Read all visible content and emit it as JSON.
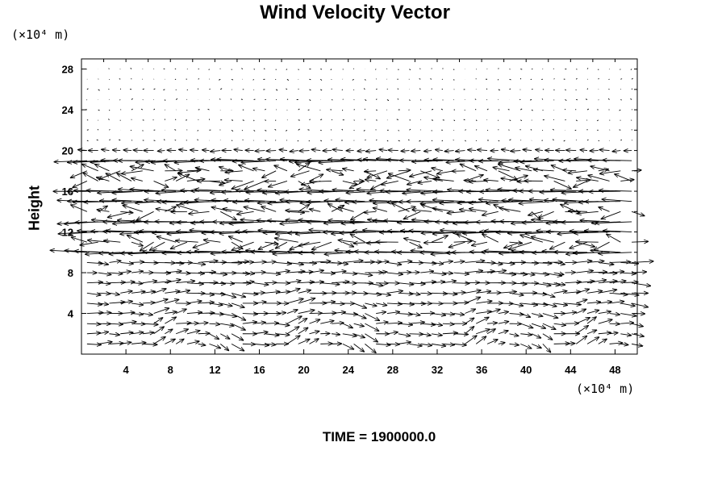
{
  "chart_data": {
    "type": "vector-field",
    "title": "Wind Velocity Vector",
    "y_unit": "(×10⁴ m)",
    "x_unit": "(×10⁴ m)",
    "ylabel": "Height",
    "xlabel": "",
    "xlim": [
      0,
      50
    ],
    "ylim": [
      0,
      29
    ],
    "x_ticks": [
      4,
      8,
      12,
      16,
      20,
      24,
      28,
      32,
      36,
      40,
      44,
      48
    ],
    "y_ticks": [
      4,
      8,
      12,
      16,
      20,
      24,
      28
    ],
    "grid": false,
    "footer": {
      "label": "TIME =",
      "value": "1900000.0"
    },
    "field_description": "Arrows sampled on a regular grid; weak flow above 20, strong westward jets in layers ~10-19, mixed rotational flow below 8."
  }
}
